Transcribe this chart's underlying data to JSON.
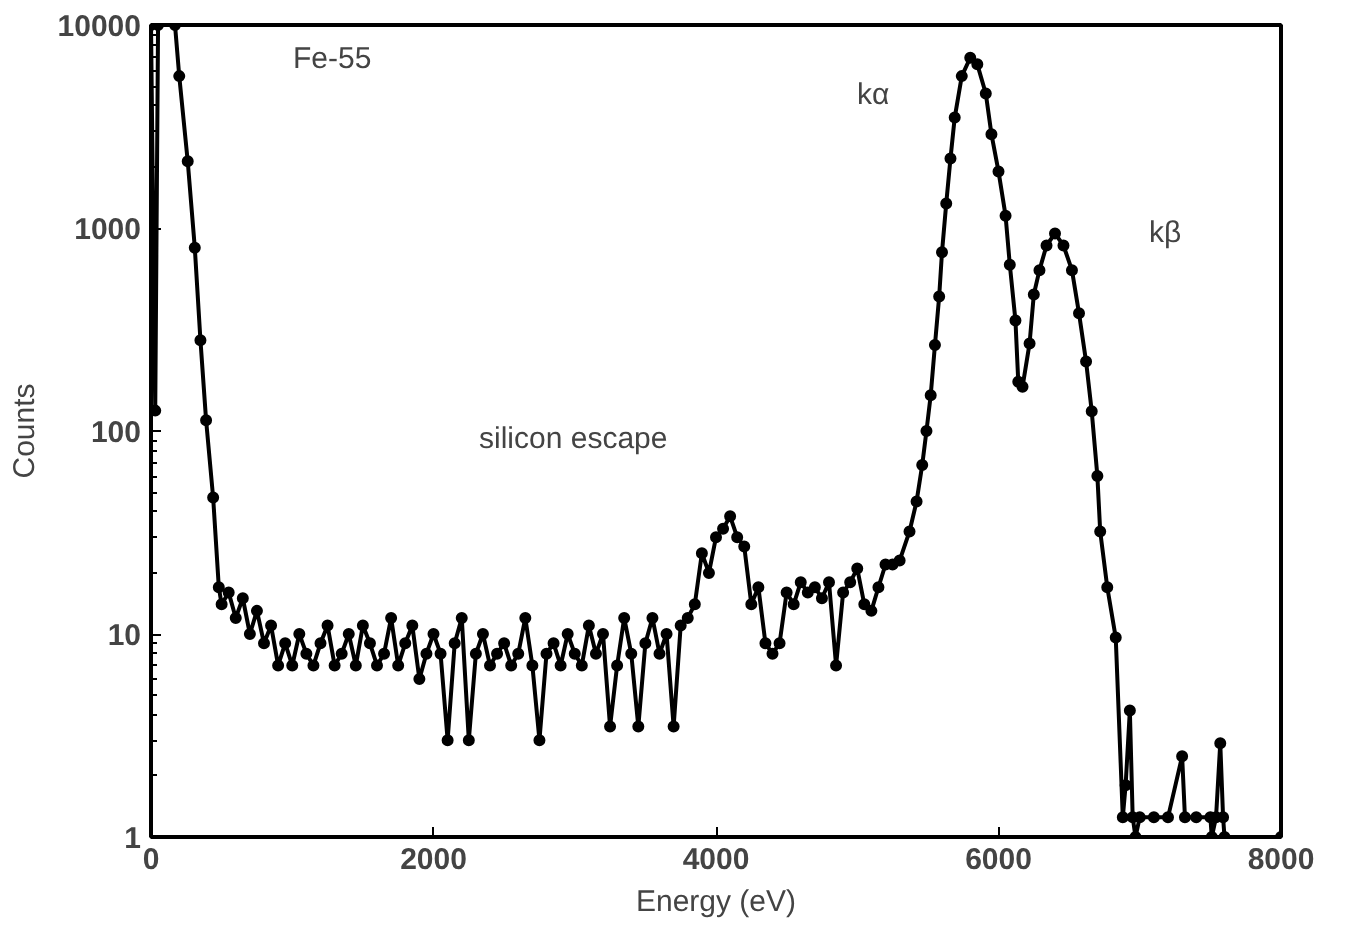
{
  "chart_data": {
    "type": "line",
    "xlabel": "Energy (eV)",
    "ylabel": "Counts",
    "log": "y",
    "xlim": [
      0,
      8000
    ],
    "ylim": [
      1,
      10000
    ],
    "xticks": [
      0,
      2000,
      4000,
      6000,
      8000
    ],
    "yticks": [
      1,
      10,
      100,
      1000,
      10000
    ],
    "grid": false,
    "marker": "circle",
    "line_style": "solid",
    "annotations": [
      "Fe-55",
      "kα",
      "kβ",
      "silicon escape"
    ],
    "series": [
      {
        "color": "#000000",
        "x": [
          0,
          30,
          50,
          120,
          170,
          200,
          260,
          310,
          350,
          390,
          440,
          480,
          500,
          550,
          600,
          650,
          700,
          750,
          800,
          850,
          900,
          950,
          1000,
          1050,
          1100,
          1150,
          1200,
          1250,
          1300,
          1350,
          1400,
          1450,
          1500,
          1550,
          1600,
          1650,
          1700,
          1750,
          1800,
          1850,
          1900,
          1950,
          2000,
          2050,
          2100,
          2150,
          2200,
          2250,
          2300,
          2350,
          2400,
          2450,
          2500,
          2550,
          2600,
          2650,
          2700,
          2750,
          2800,
          2850,
          2900,
          2950,
          3000,
          3050,
          3100,
          3150,
          3200,
          3250,
          3300,
          3350,
          3400,
          3450,
          3500,
          3550,
          3600,
          3650,
          3700,
          3750,
          3800,
          3850,
          3900,
          3950,
          4000,
          4050,
          4100,
          4150,
          4200,
          4250,
          4300,
          4350,
          4400,
          4450,
          4500,
          4550,
          4600,
          4650,
          4700,
          4750,
          4800,
          4850,
          4900,
          4950,
          5000,
          5050,
          5100,
          5150,
          5200,
          5250,
          5300,
          5370,
          5420,
          5460,
          5490,
          5520,
          5550,
          5580,
          5600,
          5630,
          5660,
          5690,
          5740,
          5800,
          5850,
          5910,
          5950,
          6000,
          6050,
          6080,
          6120,
          6140,
          6170,
          6220,
          6250,
          6290,
          6340,
          6400,
          6460,
          6520,
          6570,
          6620,
          6660,
          6700,
          6720,
          6770,
          6830,
          6880,
          6900,
          6930,
          6950,
          6970,
          7000,
          7100,
          7200,
          7300,
          7320,
          7400,
          7500,
          7510,
          7540,
          7570,
          7590,
          7600,
          8000
        ],
        "values": [
          10000,
          126,
          10000,
          null,
          10000,
          5600,
          2130,
          800,
          280,
          113,
          47,
          17,
          14,
          16,
          12,
          15,
          10,
          13,
          9,
          11,
          7,
          9,
          7,
          10,
          8,
          7,
          9,
          11,
          7,
          8,
          10,
          7,
          11,
          9,
          7,
          8,
          12,
          7,
          9,
          11,
          6,
          8,
          10,
          8,
          3,
          9,
          12,
          3,
          8,
          10,
          7,
          8,
          9,
          7,
          8,
          12,
          7,
          3,
          8,
          9,
          7,
          10,
          8,
          7,
          11,
          8,
          10,
          3.5,
          7,
          12,
          8,
          3.5,
          9,
          12,
          8,
          10,
          3.5,
          11,
          12,
          14,
          25,
          20,
          30,
          33,
          38,
          30,
          27,
          14,
          17,
          9,
          8,
          9,
          16,
          14,
          18,
          16,
          17,
          15,
          18,
          7,
          16,
          18,
          21,
          14,
          13,
          17,
          22,
          22,
          23,
          32,
          45,
          68,
          100,
          150,
          265,
          460,
          760,
          1320,
          2200,
          3500,
          5600,
          6900,
          6400,
          4600,
          2900,
          1900,
          1150,
          660,
          350,
          175,
          165,
          270,
          470,
          620,
          820,
          940,
          820,
          620,
          380,
          220,
          125,
          60,
          32,
          17,
          9.6,
          1.25,
          1.8,
          4.2,
          1.25,
          1,
          1.25,
          1.25,
          1.25,
          2.5,
          1.25,
          1.25,
          1.25,
          1,
          1.25,
          2.9,
          1.25,
          1,
          1
        ]
      }
    ]
  }
}
